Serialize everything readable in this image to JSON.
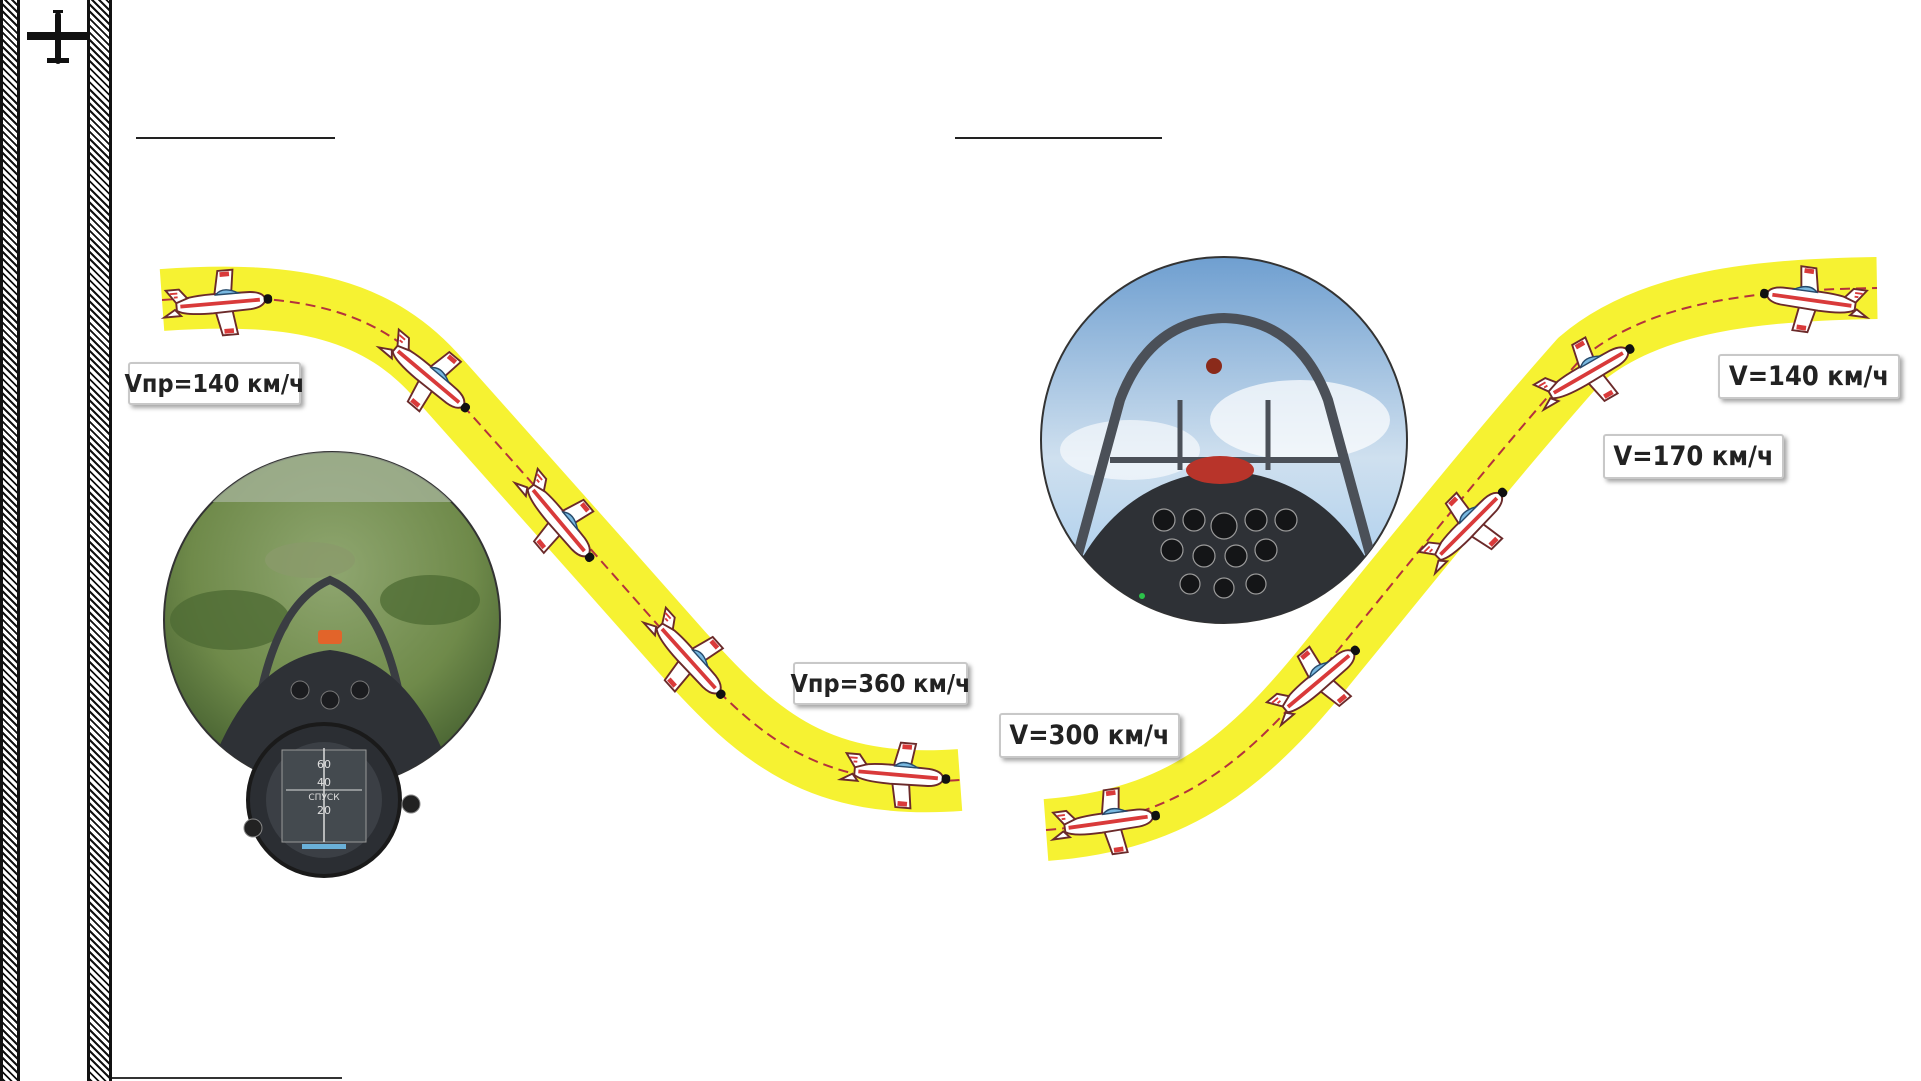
{
  "labels": {
    "left_top": "Vпр=140 км/ч",
    "left_bottom": "Vпр=360 км/ч",
    "right_bottom": "V=300 км/ч",
    "right_mid": "V=170 км/ч",
    "right_top": "V=140 км/ч"
  },
  "gauge": {
    "upper": "60",
    "mid": "40",
    "caption": "СПУСК",
    "lower": "20"
  },
  "colors": {
    "path_fill": "#f6f232",
    "dash": "#b4323c",
    "plane_body": "#ffffff",
    "plane_stripe": "#d93a3a",
    "canopy": "#78b8e0",
    "sky": "#9fc8ec",
    "terrain": "#6f8a4a"
  },
  "icons": [
    "aircraft-icon",
    "cockpit-view-terrain",
    "cockpit-view-sky",
    "variometer-gauge"
  ]
}
